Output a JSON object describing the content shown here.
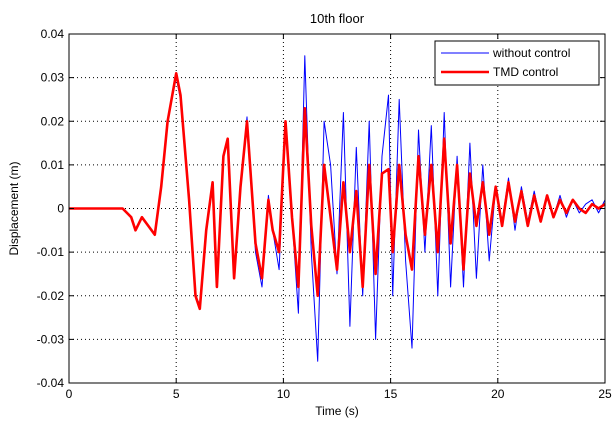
{
  "chart_data": {
    "type": "line",
    "title": "10th floor",
    "xlabel": "Time (s)",
    "ylabel": "Displacement (m)",
    "xlim": [
      0,
      25
    ],
    "ylim": [
      -0.04,
      0.04
    ],
    "xticks": [
      "0",
      "5",
      "10",
      "15",
      "20",
      "25"
    ],
    "yticks": [
      "-0.04",
      "-0.03",
      "-0.02",
      "-0.01",
      "0",
      "0.01",
      "0.02",
      "0.03",
      "0.04"
    ],
    "grid": true,
    "legend_position": "top-right",
    "series": [
      {
        "name": "without control",
        "color": "#0000ff",
        "x": [
          0,
          2.5,
          2.9,
          3.1,
          3.4,
          3.7,
          4.0,
          4.3,
          4.6,
          5.0,
          5.2,
          5.6,
          5.9,
          6.1,
          6.4,
          6.7,
          6.9,
          7.2,
          7.4,
          7.7,
          8.0,
          8.3,
          8.7,
          9.0,
          9.3,
          9.5,
          9.8,
          10.1,
          10.4,
          10.7,
          11.0,
          11.3,
          11.6,
          11.9,
          12.2,
          12.5,
          12.8,
          13.1,
          13.4,
          13.7,
          14.0,
          14.3,
          14.6,
          14.9,
          15.1,
          15.4,
          15.7,
          16.0,
          16.3,
          16.6,
          16.9,
          17.2,
          17.5,
          17.8,
          18.1,
          18.4,
          18.7,
          19.0,
          19.3,
          19.6,
          19.9,
          20.2,
          20.5,
          20.8,
          21.1,
          21.4,
          21.7,
          22.0,
          22.3,
          22.6,
          22.9,
          23.2,
          23.5,
          23.8,
          24.1,
          24.4,
          24.7,
          25.0
        ],
        "y": [
          0,
          0,
          -0.002,
          -0.005,
          -0.002,
          -0.004,
          -0.006,
          0.005,
          0.02,
          0.03,
          0.025,
          0.002,
          -0.02,
          -0.022,
          -0.005,
          0.006,
          -0.018,
          0.012,
          0.015,
          -0.015,
          0.005,
          0.021,
          -0.01,
          -0.018,
          0.003,
          -0.005,
          -0.014,
          0.02,
          -0.002,
          -0.024,
          0.035,
          -0.01,
          -0.035,
          0.02,
          0.01,
          -0.015,
          0.022,
          -0.027,
          0.014,
          -0.02,
          0.02,
          -0.03,
          0.012,
          0.026,
          -0.02,
          0.025,
          -0.012,
          -0.032,
          0.018,
          -0.01,
          0.019,
          -0.02,
          0.022,
          -0.018,
          0.012,
          -0.018,
          0.015,
          -0.016,
          0.01,
          -0.012,
          0.005,
          -0.003,
          0.007,
          -0.005,
          0.005,
          -0.003,
          0.004,
          -0.003,
          0.003,
          -0.002,
          0.003,
          -0.002,
          0.002,
          -0.001,
          0.001,
          0.002,
          -0.001,
          0.002
        ]
      },
      {
        "name": "TMD control",
        "color": "#ff0000",
        "x": [
          0,
          2.5,
          2.9,
          3.1,
          3.4,
          3.7,
          4.0,
          4.3,
          4.6,
          5.0,
          5.2,
          5.6,
          5.9,
          6.1,
          6.4,
          6.7,
          6.9,
          7.2,
          7.4,
          7.7,
          8.0,
          8.3,
          8.7,
          9.0,
          9.3,
          9.5,
          9.8,
          10.1,
          10.4,
          10.7,
          11.0,
          11.3,
          11.6,
          11.9,
          12.2,
          12.5,
          12.8,
          13.1,
          13.4,
          13.7,
          14.0,
          14.3,
          14.6,
          14.9,
          15.1,
          15.4,
          15.7,
          16.0,
          16.3,
          16.6,
          16.9,
          17.2,
          17.5,
          17.8,
          18.1,
          18.4,
          18.7,
          19.0,
          19.3,
          19.6,
          19.9,
          20.2,
          20.5,
          20.8,
          21.1,
          21.4,
          21.7,
          22.0,
          22.3,
          22.6,
          22.9,
          23.2,
          23.5,
          23.8,
          24.1,
          24.4,
          24.7,
          25.0
        ],
        "y": [
          0,
          0,
          -0.002,
          -0.005,
          -0.002,
          -0.004,
          -0.006,
          0.005,
          0.02,
          0.031,
          0.026,
          0.002,
          -0.02,
          -0.023,
          -0.005,
          0.006,
          -0.018,
          0.012,
          0.016,
          -0.016,
          0.005,
          0.02,
          -0.008,
          -0.016,
          0.002,
          -0.005,
          -0.01,
          0.02,
          -0.002,
          -0.018,
          0.023,
          -0.004,
          -0.02,
          0.01,
          -0.002,
          -0.014,
          0.006,
          -0.01,
          0.004,
          -0.018,
          0.01,
          -0.015,
          0.008,
          0.009,
          -0.01,
          0.01,
          -0.006,
          -0.014,
          0.012,
          -0.006,
          0.01,
          -0.01,
          0.016,
          -0.008,
          0.01,
          -0.014,
          0.008,
          -0.004,
          0.006,
          -0.006,
          0.005,
          -0.004,
          0.006,
          -0.003,
          0.004,
          -0.004,
          0.003,
          -0.003,
          0.003,
          -0.002,
          0.002,
          -0.001,
          0.002,
          0.0,
          -0.001,
          0.001,
          0.0,
          0.001
        ]
      }
    ]
  }
}
